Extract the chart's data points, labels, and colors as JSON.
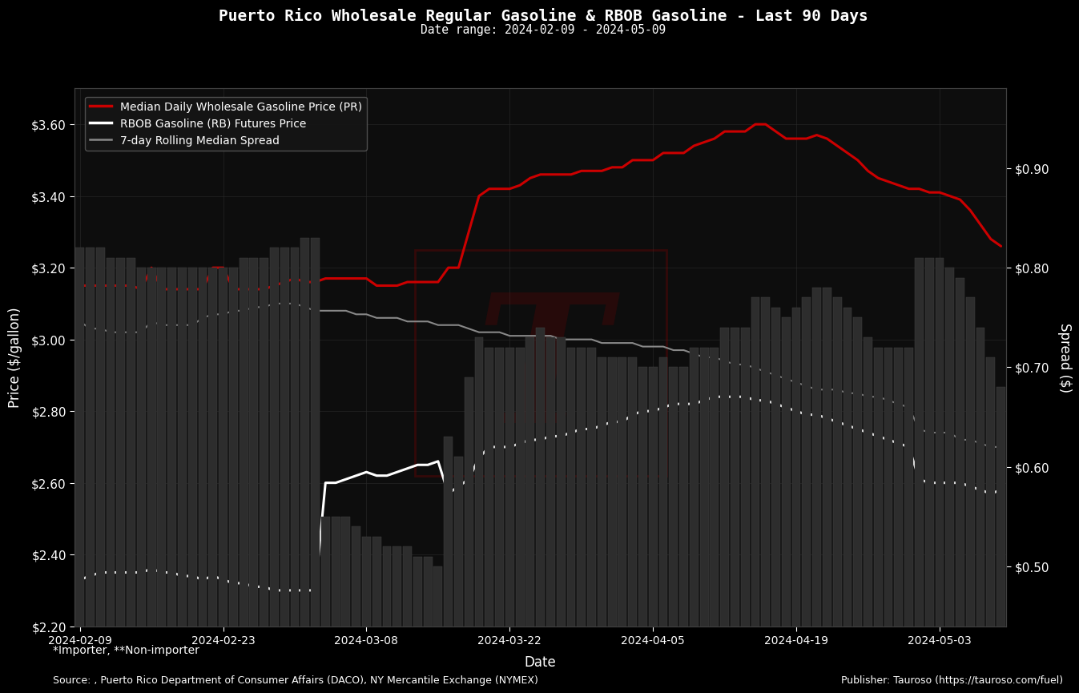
{
  "title": "Puerto Rico Wholesale Regular Gasoline & RBOB Gasoline - Last 90 Days",
  "subtitle": "Date range: 2024-02-09 - 2024-05-09",
  "xlabel": "Date",
  "ylabel_left": "Price ($/gallon)",
  "ylabel_right": "Spread ($)",
  "background_color": "#000000",
  "plot_bg_color": "#0d0d0d",
  "text_color": "#ffffff",
  "grid_color": "#2a2a2a",
  "footnote1": "*Importer, **Non-importer",
  "footnote2": "Source: , Puerto Rico Department of Consumer Affairs (DACO), NY Mercantile Exchange (NYMEX)",
  "footnote3": "Publisher: Tauroso (https://tauroso.com/fuel)",
  "legend_labels": [
    "Median Daily Wholesale Gasoline Price (PR)",
    "RBOB Gasoline (RB) Futures Price",
    "7-day Rolling Median Spread"
  ],
  "dates": [
    "2024-02-09",
    "2024-02-10",
    "2024-02-11",
    "2024-02-12",
    "2024-02-13",
    "2024-02-14",
    "2024-02-15",
    "2024-02-16",
    "2024-02-17",
    "2024-02-18",
    "2024-02-19",
    "2024-02-20",
    "2024-02-21",
    "2024-02-22",
    "2024-02-23",
    "2024-02-24",
    "2024-02-25",
    "2024-02-26",
    "2024-02-27",
    "2024-02-28",
    "2024-02-29",
    "2024-03-01",
    "2024-03-02",
    "2024-03-03",
    "2024-03-04",
    "2024-03-05",
    "2024-03-06",
    "2024-03-07",
    "2024-03-08",
    "2024-03-09",
    "2024-03-10",
    "2024-03-11",
    "2024-03-12",
    "2024-03-13",
    "2024-03-14",
    "2024-03-15",
    "2024-03-16",
    "2024-03-17",
    "2024-03-18",
    "2024-03-19",
    "2024-03-20",
    "2024-03-21",
    "2024-03-22",
    "2024-03-23",
    "2024-03-24",
    "2024-03-25",
    "2024-03-26",
    "2024-03-27",
    "2024-03-28",
    "2024-03-29",
    "2024-03-30",
    "2024-03-31",
    "2024-04-01",
    "2024-04-02",
    "2024-04-03",
    "2024-04-04",
    "2024-04-05",
    "2024-04-06",
    "2024-04-07",
    "2024-04-08",
    "2024-04-09",
    "2024-04-10",
    "2024-04-11",
    "2024-04-12",
    "2024-04-13",
    "2024-04-14",
    "2024-04-15",
    "2024-04-16",
    "2024-04-17",
    "2024-04-18",
    "2024-04-19",
    "2024-04-20",
    "2024-04-21",
    "2024-04-22",
    "2024-04-23",
    "2024-04-24",
    "2024-04-25",
    "2024-04-26",
    "2024-04-27",
    "2024-04-28",
    "2024-04-29",
    "2024-04-30",
    "2024-05-01",
    "2024-05-02",
    "2024-05-03",
    "2024-05-04",
    "2024-05-05",
    "2024-05-06",
    "2024-05-07",
    "2024-05-08",
    "2024-05-09"
  ],
  "wholesale_price": [
    3.15,
    3.15,
    3.15,
    3.15,
    3.15,
    3.15,
    3.14,
    3.2,
    3.14,
    3.14,
    3.14,
    3.14,
    3.14,
    3.2,
    3.2,
    3.14,
    3.14,
    3.14,
    3.14,
    3.15,
    3.16,
    3.17,
    3.16,
    3.16,
    3.17,
    3.17,
    3.17,
    3.17,
    3.17,
    3.15,
    3.15,
    3.15,
    3.16,
    3.16,
    3.16,
    3.16,
    3.2,
    3.2,
    3.3,
    3.4,
    3.42,
    3.42,
    3.42,
    3.43,
    3.45,
    3.46,
    3.46,
    3.46,
    3.46,
    3.47,
    3.47,
    3.47,
    3.48,
    3.48,
    3.5,
    3.5,
    3.5,
    3.52,
    3.52,
    3.52,
    3.54,
    3.55,
    3.56,
    3.58,
    3.58,
    3.58,
    3.6,
    3.6,
    3.58,
    3.56,
    3.56,
    3.56,
    3.57,
    3.56,
    3.54,
    3.52,
    3.5,
    3.47,
    3.45,
    3.44,
    3.43,
    3.42,
    3.42,
    3.41,
    3.41,
    3.4,
    3.39,
    3.36,
    3.32,
    3.28,
    3.26
  ],
  "rbob_price": [
    2.33,
    2.34,
    2.35,
    2.35,
    2.35,
    2.35,
    2.35,
    2.36,
    2.35,
    2.35,
    2.34,
    2.34,
    2.33,
    2.34,
    2.33,
    2.32,
    2.32,
    2.31,
    2.31,
    2.3,
    2.3,
    2.3,
    2.3,
    2.3,
    2.6,
    2.6,
    2.61,
    2.62,
    2.63,
    2.62,
    2.62,
    2.63,
    2.64,
    2.65,
    2.65,
    2.66,
    2.57,
    2.59,
    2.61,
    2.67,
    2.7,
    2.7,
    2.7,
    2.71,
    2.72,
    2.72,
    2.73,
    2.73,
    2.74,
    2.75,
    2.75,
    2.76,
    2.77,
    2.77,
    2.79,
    2.8,
    2.8,
    2.81,
    2.82,
    2.82,
    2.82,
    2.83,
    2.84,
    2.84,
    2.84,
    2.84,
    2.83,
    2.83,
    2.82,
    2.81,
    2.8,
    2.79,
    2.79,
    2.78,
    2.77,
    2.76,
    2.75,
    2.74,
    2.73,
    2.72,
    2.71,
    2.7,
    2.61,
    2.6,
    2.6,
    2.6,
    2.6,
    2.59,
    2.58,
    2.57,
    2.58
  ],
  "spread_7day": [
    3.05,
    3.03,
    3.03,
    3.02,
    3.02,
    3.02,
    3.02,
    3.05,
    3.04,
    3.04,
    3.04,
    3.04,
    3.06,
    3.07,
    3.07,
    3.08,
    3.08,
    3.09,
    3.09,
    3.1,
    3.1,
    3.1,
    3.09,
    3.08,
    3.08,
    3.08,
    3.08,
    3.07,
    3.07,
    3.06,
    3.06,
    3.06,
    3.05,
    3.05,
    3.05,
    3.04,
    3.04,
    3.04,
    3.03,
    3.02,
    3.02,
    3.02,
    3.01,
    3.01,
    3.01,
    3.01,
    3.01,
    3.0,
    3.0,
    3.0,
    3.0,
    2.99,
    2.99,
    2.99,
    2.99,
    2.98,
    2.98,
    2.98,
    2.97,
    2.97,
    2.96,
    2.95,
    2.95,
    2.94,
    2.93,
    2.93,
    2.92,
    2.91,
    2.9,
    2.89,
    2.88,
    2.87,
    2.86,
    2.86,
    2.86,
    2.85,
    2.85,
    2.84,
    2.84,
    2.83,
    2.82,
    2.81,
    2.75,
    2.74,
    2.74,
    2.74,
    2.72,
    2.72,
    2.71,
    2.7,
    2.7
  ],
  "bar_heights": [
    0.82,
    0.82,
    0.82,
    0.81,
    0.81,
    0.81,
    0.8,
    0.8,
    0.8,
    0.8,
    0.8,
    0.8,
    0.8,
    0.8,
    0.8,
    0.8,
    0.81,
    0.81,
    0.81,
    0.82,
    0.82,
    0.82,
    0.83,
    0.83,
    0.55,
    0.55,
    0.55,
    0.54,
    0.53,
    0.53,
    0.52,
    0.52,
    0.52,
    0.51,
    0.51,
    0.5,
    0.63,
    0.61,
    0.69,
    0.73,
    0.72,
    0.72,
    0.72,
    0.72,
    0.73,
    0.74,
    0.73,
    0.73,
    0.72,
    0.72,
    0.72,
    0.71,
    0.71,
    0.71,
    0.71,
    0.7,
    0.7,
    0.71,
    0.7,
    0.7,
    0.72,
    0.72,
    0.72,
    0.74,
    0.74,
    0.74,
    0.77,
    0.77,
    0.76,
    0.75,
    0.76,
    0.77,
    0.78,
    0.78,
    0.77,
    0.76,
    0.75,
    0.73,
    0.72,
    0.72,
    0.72,
    0.72,
    0.81,
    0.81,
    0.81,
    0.8,
    0.79,
    0.77,
    0.74,
    0.71,
    0.68
  ],
  "ylim_left": [
    2.2,
    3.7
  ],
  "ylim_right": [
    0.44,
    0.98
  ],
  "bar_color": "#2d2d2d",
  "bar_edge_color": "#444444",
  "wholesale_color": "#cc0000",
  "rbob_color": "#ffffff",
  "spread_color": "#888888",
  "watermark_color": "#8b0000",
  "watermark_alpha": 0.2
}
